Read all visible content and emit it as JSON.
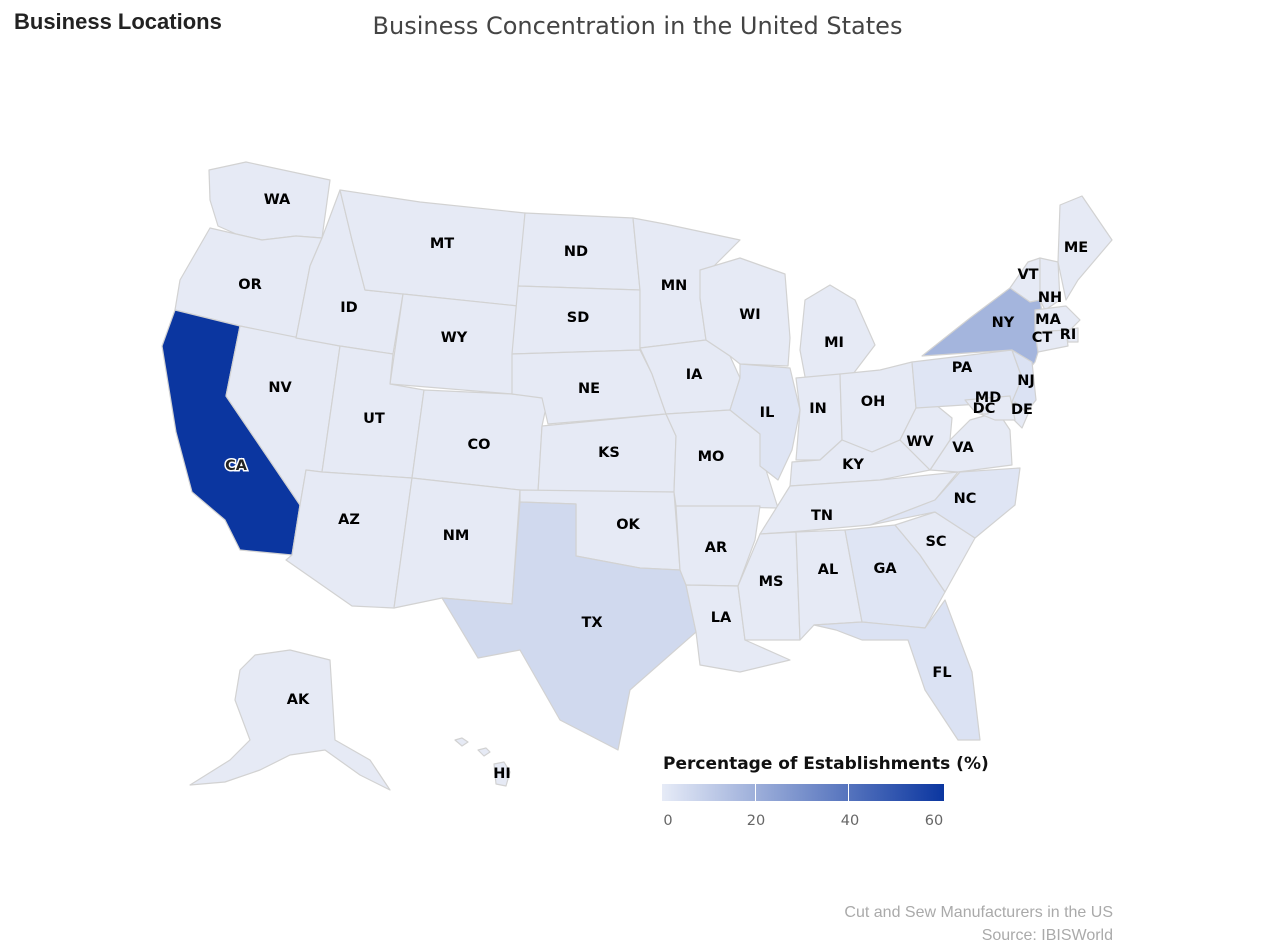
{
  "section_title": "Business Locations",
  "chart_title": "Business Concentration in the United States",
  "legend": {
    "title": "Percentage of Establishments (%)",
    "ticks": [
      "0",
      "20",
      "40",
      "60"
    ],
    "min": 0,
    "max": 60,
    "color_low": "#e6ebf7",
    "color_high": "#0b36a0"
  },
  "credits": {
    "line1": "Cut and Sew Manufacturers in the US",
    "line2": "Source: IBISWorld"
  },
  "colors": {
    "default_fill": "#e6eaf5",
    "border": "#d2d2d2"
  },
  "chart_data": {
    "type": "choropleth",
    "metric": "Percentage of Establishments (%)",
    "values": {
      "CA": 60,
      "NY": 18,
      "TX": 6,
      "FL": 3,
      "NJ": 3,
      "IL": 2,
      "PA": 2,
      "GA": 2,
      "NC": 2,
      "MA": 1,
      "WA": 1,
      "OR": 1,
      "AZ": 1,
      "OH": 1,
      "MI": 1,
      "VA": 1,
      "MN": 1,
      "CO": 1,
      "TN": 1,
      "SC": 1,
      "UT": 1
    },
    "states": [
      {
        "code": "WA",
        "label": "WA"
      },
      {
        "code": "OR",
        "label": "OR"
      },
      {
        "code": "CA",
        "label": "CA"
      },
      {
        "code": "NV",
        "label": "NV"
      },
      {
        "code": "ID",
        "label": "ID"
      },
      {
        "code": "MT",
        "label": "MT"
      },
      {
        "code": "WY",
        "label": "WY"
      },
      {
        "code": "UT",
        "label": "UT"
      },
      {
        "code": "AZ",
        "label": "AZ"
      },
      {
        "code": "CO",
        "label": "CO"
      },
      {
        "code": "NM",
        "label": "NM"
      },
      {
        "code": "ND",
        "label": "ND"
      },
      {
        "code": "SD",
        "label": "SD"
      },
      {
        "code": "NE",
        "label": "NE"
      },
      {
        "code": "KS",
        "label": "KS"
      },
      {
        "code": "OK",
        "label": "OK"
      },
      {
        "code": "TX",
        "label": "TX"
      },
      {
        "code": "MN",
        "label": "MN"
      },
      {
        "code": "IA",
        "label": "IA"
      },
      {
        "code": "MO",
        "label": "MO"
      },
      {
        "code": "AR",
        "label": "AR"
      },
      {
        "code": "LA",
        "label": "LA"
      },
      {
        "code": "WI",
        "label": "WI"
      },
      {
        "code": "IL",
        "label": "IL"
      },
      {
        "code": "MI",
        "label": "MI"
      },
      {
        "code": "IN",
        "label": "IN"
      },
      {
        "code": "OH",
        "label": "OH"
      },
      {
        "code": "KY",
        "label": "KY"
      },
      {
        "code": "TN",
        "label": "TN"
      },
      {
        "code": "MS",
        "label": "MS"
      },
      {
        "code": "AL",
        "label": "AL"
      },
      {
        "code": "GA",
        "label": "GA"
      },
      {
        "code": "FL",
        "label": "FL"
      },
      {
        "code": "SC",
        "label": "SC"
      },
      {
        "code": "NC",
        "label": "NC"
      },
      {
        "code": "VA",
        "label": "VA"
      },
      {
        "code": "WV",
        "label": "WV"
      },
      {
        "code": "PA",
        "label": "PA"
      },
      {
        "code": "NY",
        "label": "NY"
      },
      {
        "code": "VT",
        "label": "VT"
      },
      {
        "code": "NH",
        "label": "NH"
      },
      {
        "code": "ME",
        "label": "ME"
      },
      {
        "code": "MA",
        "label": "MA"
      },
      {
        "code": "RI",
        "label": "RI"
      },
      {
        "code": "CT",
        "label": "CT"
      },
      {
        "code": "NJ",
        "label": "NJ"
      },
      {
        "code": "DE",
        "label": "DE"
      },
      {
        "code": "MD",
        "label": "MD"
      },
      {
        "code": "DC",
        "label": "DC"
      },
      {
        "code": "AK",
        "label": "AK"
      },
      {
        "code": "HI",
        "label": "HI"
      }
    ]
  }
}
